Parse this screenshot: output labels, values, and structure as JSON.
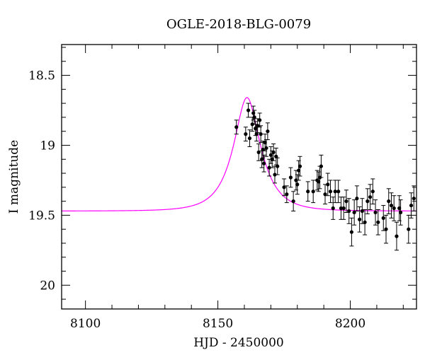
{
  "chart_data": {
    "type": "scatter",
    "title": "OGLE-2018-BLG-0079",
    "xlabel": "HJD - 2450000",
    "ylabel": "I magnitude",
    "xlim": [
      8091,
      8225
    ],
    "ylim": [
      20.17,
      18.28
    ],
    "y_inverted": true,
    "grid": false,
    "legend": "none",
    "x_major_ticks": [
      8100,
      8150,
      8200
    ],
    "y_major_ticks": [
      18.5,
      19,
      19.5,
      20
    ],
    "x_minor_step": 10,
    "y_minor_step": 0.1,
    "x_tick_labels": [
      "8100",
      "8150",
      "8200"
    ],
    "y_tick_labels": [
      "18.5",
      "19",
      "19.5",
      "20"
    ],
    "colors": {
      "data": "#000000",
      "model": "#ff00ff"
    },
    "model_params": {
      "t0": 8161,
      "u0": 0.45,
      "tE": 9.5,
      "baseline_mag": 19.47,
      "blend_fraction": 0.8
    },
    "series": [
      {
        "type": "scatter_errorbar",
        "x": [
          8157.0,
          8160.5,
          8161.5,
          8162.0,
          8163.0,
          8163.4,
          8163.8,
          8164.2,
          8164.6,
          8165.0,
          8165.4,
          8165.8,
          8166.2,
          8166.6,
          8167.0,
          8167.4,
          8167.8,
          8168.3,
          8168.8,
          8169.4,
          8170.0,
          8170.5,
          8171.0,
          8171.5,
          8172.0,
          8172.5,
          8175.0,
          8176.0,
          8177.5,
          8178.5,
          8179.5,
          8180.0,
          8180.5,
          8181.0,
          8184.0,
          8186.0,
          8187.5,
          8188.0,
          8188.5,
          8189.0,
          8190.5,
          8191.5,
          8192.5,
          8193.5,
          8194.3,
          8195.5,
          8196.5,
          8197.5,
          8198.5,
          8199.5,
          8200.5,
          8201.5,
          8202.5,
          8203.5,
          8204.5,
          8205.5,
          8206.5,
          8207.5,
          8208.5,
          8209.5,
          8210.5,
          8212.5,
          8213.5,
          8214.5,
          8215.5,
          8216.5,
          8217.5,
          8218.5,
          8219.0,
          8222.0,
          8223.0,
          8224.0
        ],
        "y": [
          18.87,
          18.92,
          18.75,
          18.95,
          18.85,
          18.77,
          18.8,
          18.88,
          18.92,
          18.86,
          19.05,
          18.82,
          18.92,
          19.1,
          19.03,
          19.13,
          18.98,
          19.02,
          18.9,
          19.16,
          19.07,
          19.1,
          19.05,
          19.21,
          19.08,
          19.15,
          19.3,
          19.35,
          19.23,
          19.4,
          19.25,
          19.28,
          19.18,
          19.15,
          19.33,
          19.33,
          19.25,
          19.26,
          19.23,
          19.15,
          19.35,
          19.28,
          19.33,
          19.45,
          19.33,
          19.33,
          19.45,
          19.45,
          19.4,
          19.47,
          19.62,
          19.48,
          19.38,
          19.53,
          19.47,
          19.55,
          19.4,
          19.37,
          19.33,
          19.48,
          19.55,
          19.52,
          19.6,
          19.4,
          19.43,
          19.45,
          19.65,
          19.45,
          19.48,
          19.6,
          19.43,
          19.38
        ],
        "yerr": [
          0.05,
          0.05,
          0.05,
          0.06,
          0.05,
          0.05,
          0.05,
          0.05,
          0.05,
          0.05,
          0.06,
          0.05,
          0.06,
          0.06,
          0.06,
          0.06,
          0.06,
          0.06,
          0.06,
          0.06,
          0.06,
          0.06,
          0.06,
          0.06,
          0.06,
          0.06,
          0.06,
          0.06,
          0.07,
          0.07,
          0.07,
          0.07,
          0.07,
          0.07,
          0.07,
          0.08,
          0.07,
          0.07,
          0.08,
          0.08,
          0.07,
          0.08,
          0.08,
          0.08,
          0.08,
          0.08,
          0.08,
          0.08,
          0.08,
          0.09,
          0.1,
          0.09,
          0.09,
          0.09,
          0.09,
          0.09,
          0.09,
          0.09,
          0.09,
          0.09,
          0.09,
          0.09,
          0.1,
          0.09,
          0.09,
          0.09,
          0.1,
          0.09,
          0.09,
          0.1,
          0.09,
          0.09
        ]
      },
      {
        "type": "line_model"
      }
    ]
  }
}
